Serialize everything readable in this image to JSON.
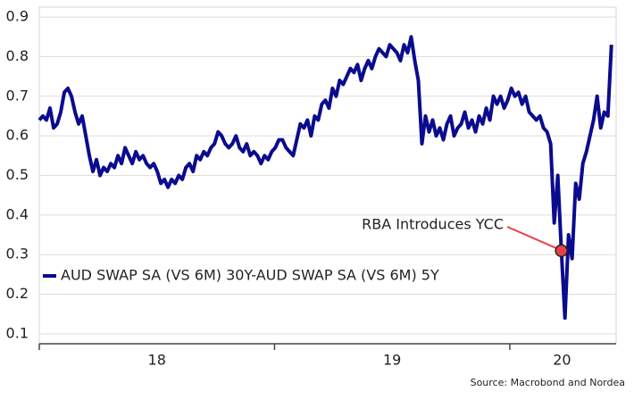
{
  "chart_data": {
    "type": "line",
    "x": [
      2018,
      2018.0152,
      2018.0304,
      2018.0456,
      2018.0608,
      2018.076,
      2018.0912,
      2018.1064,
      2018.1216,
      2018.1368,
      2018.152,
      2018.1672,
      2018.1824,
      2018.1976,
      2018.2128,
      2018.228,
      2018.2432,
      2018.2584,
      2018.2736,
      2018.2888,
      2018.304,
      2018.3192,
      2018.3344,
      2018.3496,
      2018.3648,
      2018.38,
      2018.3952,
      2018.4104,
      2018.4256,
      2018.4408,
      2018.456,
      2018.4712,
      2018.4864,
      2018.5016,
      2018.5168,
      2018.532,
      2018.5472,
      2018.5624,
      2018.5776,
      2018.5928,
      2018.608,
      2018.6232,
      2018.6384,
      2018.6536,
      2018.6688,
      2018.684,
      2018.6992,
      2018.7144,
      2018.7296,
      2018.7448,
      2018.76,
      2018.7752,
      2018.7904,
      2018.8056,
      2018.8208,
      2018.836,
      2018.8512,
      2018.8664,
      2018.8816,
      2018.8968,
      2018.912,
      2018.9272,
      2018.9424,
      2018.9576,
      2018.9728,
      2018.988,
      2019.0032,
      2019.0184,
      2019.0336,
      2019.0488,
      2019.064,
      2019.0792,
      2019.0944,
      2019.1096,
      2019.1248,
      2019.14,
      2019.1552,
      2019.1704,
      2019.1856,
      2019.2008,
      2019.216,
      2019.2312,
      2019.2464,
      2019.2616,
      2019.2768,
      2019.292,
      2019.3072,
      2019.3224,
      2019.3376,
      2019.3528,
      2019.368,
      2019.3832,
      2019.3984,
      2019.4136,
      2019.4288,
      2019.444,
      2019.4592,
      2019.4744,
      2019.4896,
      2019.5048,
      2019.52,
      2019.5352,
      2019.5504,
      2019.5656,
      2019.5808,
      2019.596,
      2019.6112,
      2019.6264,
      2019.6416,
      2019.6568,
      2019.672,
      2019.6872,
      2019.7024,
      2019.7176,
      2019.7328,
      2019.748,
      2019.7632,
      2019.7784,
      2019.7936,
      2019.8088,
      2019.824,
      2019.8392,
      2019.8544,
      2019.8696,
      2019.8848,
      2019.9,
      2019.9152,
      2019.9304,
      2019.9456,
      2019.9608,
      2019.976,
      2019.9912,
      2020.0064,
      2020.0216,
      2020.0368,
      2020.052,
      2020.0672,
      2020.0824,
      2020.0976,
      2020.1128,
      2020.128,
      2020.1432,
      2020.1584,
      2020.1736,
      2020.1888,
      2020.204,
      2020.2192,
      2020.2344,
      2020.2496,
      2020.2648,
      2020.28,
      2020.2952,
      2020.3104,
      2020.3256,
      2020.3408,
      2020.356,
      2020.3712,
      2020.3864,
      2020.4016,
      2020.4168,
      2020.432
    ],
    "series": [
      {
        "name": "AUD SWAP SA (VS 6M) 30Y-AUD SWAP SA (VS 6M) 5Y",
        "color": "#0b0b8e",
        "values": [
          0.64,
          0.65,
          0.64,
          0.67,
          0.62,
          0.63,
          0.66,
          0.71,
          0.72,
          0.7,
          0.66,
          0.63,
          0.65,
          0.6,
          0.55,
          0.51,
          0.54,
          0.5,
          0.52,
          0.51,
          0.53,
          0.52,
          0.55,
          0.53,
          0.57,
          0.55,
          0.53,
          0.56,
          0.54,
          0.55,
          0.53,
          0.52,
          0.53,
          0.51,
          0.48,
          0.49,
          0.47,
          0.49,
          0.48,
          0.5,
          0.49,
          0.52,
          0.53,
          0.51,
          0.55,
          0.54,
          0.56,
          0.55,
          0.57,
          0.58,
          0.61,
          0.6,
          0.58,
          0.57,
          0.58,
          0.6,
          0.57,
          0.56,
          0.58,
          0.55,
          0.56,
          0.55,
          0.53,
          0.55,
          0.54,
          0.56,
          0.57,
          0.59,
          0.59,
          0.57,
          0.56,
          0.55,
          0.59,
          0.63,
          0.62,
          0.64,
          0.6,
          0.65,
          0.64,
          0.68,
          0.69,
          0.67,
          0.72,
          0.7,
          0.74,
          0.73,
          0.75,
          0.77,
          0.76,
          0.78,
          0.74,
          0.77,
          0.79,
          0.77,
          0.8,
          0.82,
          0.81,
          0.8,
          0.83,
          0.82,
          0.81,
          0.79,
          0.83,
          0.81,
          0.85,
          0.79,
          0.74,
          0.58,
          0.65,
          0.61,
          0.64,
          0.6,
          0.62,
          0.59,
          0.63,
          0.65,
          0.6,
          0.62,
          0.63,
          0.66,
          0.62,
          0.64,
          0.61,
          0.65,
          0.63,
          0.67,
          0.64,
          0.7,
          0.68,
          0.7,
          0.67,
          0.69,
          0.72,
          0.7,
          0.71,
          0.68,
          0.7,
          0.66,
          0.65,
          0.64,
          0.65,
          0.62,
          0.61,
          0.58,
          0.38,
          0.5,
          0.31,
          0.14,
          0.35,
          0.29,
          0.48,
          0.44,
          0.53,
          0.56,
          0.6,
          0.64,
          0.7,
          0.62,
          0.66,
          0.65,
          0.83
        ]
      }
    ],
    "xlim": [
      2018,
      2020.452
    ],
    "xticks": [
      2018,
      2019,
      2020
    ],
    "xtick_labels": [
      {
        "value": 2018.5,
        "label": "18"
      },
      {
        "value": 2019.5,
        "label": "19"
      },
      {
        "value": 2020.222,
        "label": "20"
      }
    ],
    "ylim": [
      0.075,
      0.925
    ],
    "yticks": [
      0.1,
      0.2,
      0.3,
      0.4,
      0.5,
      0.6,
      0.7,
      0.8,
      0.9
    ],
    "grid": true,
    "legend": "bottom-left",
    "annotation": {
      "text": "RBA Introduces YCC",
      "x": 2020.2192,
      "y": 0.31,
      "color": "#e8424a"
    },
    "source": "Source: Macrobond and Nordea"
  }
}
